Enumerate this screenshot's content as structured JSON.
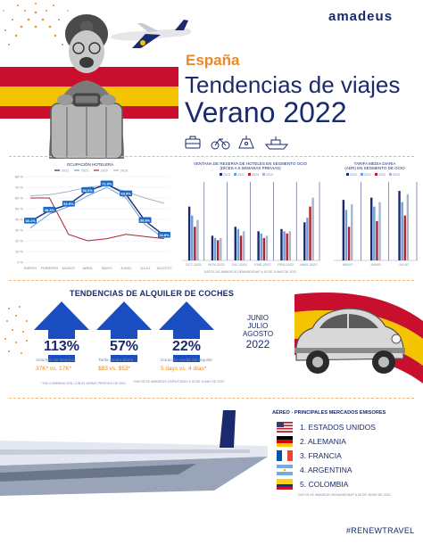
{
  "brand": {
    "logo_text": "amadeus"
  },
  "header": {
    "country": "España",
    "title_line1": "Tendencias de viajes",
    "title_line2": "Verano 2022",
    "icons": [
      "suitcase-icon",
      "bicycle-icon",
      "picnic-icon",
      "ship-icon"
    ]
  },
  "colors": {
    "navy": "#1a2a6c",
    "orange": "#e8892a",
    "flag_red": "#c8102e",
    "flag_yellow": "#f5c400",
    "series_2022": "#1a2a6c",
    "series_2021": "#6a9fd8",
    "series_2020": "#b02030",
    "series_2019": "#a8b4c8"
  },
  "chart_data": [
    {
      "type": "line",
      "title": "OCUPACIÓN HOTELERA",
      "categories": [
        "ENERO",
        "FEBRERO",
        "MARZO",
        "ABRIL",
        "MAYO",
        "JUNIO",
        "JULIO",
        "AGOSTO"
      ],
      "ylim": [
        0,
        80
      ],
      "yticks": [
        "0 %",
        "10 %",
        "20 %",
        "30 %",
        "40 %",
        "50 %",
        "60 %",
        "70 %",
        "80 %"
      ],
      "legend": [
        "2022",
        "2021",
        "2020",
        "2019"
      ],
      "series": [
        {
          "name": "2022",
          "values": [
            38.1,
            48.3,
            53.9,
            66.6,
            72.8,
            63.5,
            38.6,
            24.8
          ]
        },
        {
          "name": "2021",
          "values": [
            32,
            45,
            52,
            62,
            70,
            60,
            35,
            22
          ]
        },
        {
          "name": "2020",
          "values": [
            60,
            60,
            26,
            20,
            22,
            26,
            24,
            22
          ]
        },
        {
          "name": "2019",
          "values": [
            62,
            63,
            66,
            70,
            72,
            66,
            60,
            55
          ]
        }
      ],
      "labels": [
        "38.1%",
        "48.3%",
        "53.9%",
        "66.6%",
        "72.8%",
        "63.5%",
        "38.6%",
        "24.8%"
      ]
    },
    {
      "type": "bar",
      "title": "VENTANA DE RESERVA DE HOTELES EN SEGMENTO OCIO",
      "subtitle": "(DÍCES A 5 SEMANAS PREVIAS)",
      "categories": [
        "OCT-2021",
        "NOV-2021",
        "DIC-2021",
        "ENE-2022",
        "FEB-2022",
        "MAR-2022"
      ],
      "legend": [
        "2022",
        "2021",
        "2020",
        "2019"
      ],
      "ylim": [
        0,
        70
      ],
      "series": [
        {
          "name": "2022",
          "values": [
            48,
            22,
            30,
            26,
            28,
            34
          ]
        },
        {
          "name": "2021",
          "values": [
            40,
            20,
            28,
            24,
            26,
            38
          ]
        },
        {
          "name": "2020",
          "values": [
            30,
            18,
            22,
            20,
            24,
            48
          ]
        },
        {
          "name": "2019",
          "values": [
            36,
            20,
            26,
            22,
            26,
            56
          ]
        }
      ],
      "footnote": "DATOS DE AMADEUS DEMANDSNAP A 30 DE JUNIO DE 2022"
    },
    {
      "type": "bar",
      "title": "TARIFA MEDIA DIARIA",
      "subtitle": "(ADR) EN SEGMENTO DE OCIO",
      "categories": [
        "MAYO",
        "JUNIO",
        "JULIO"
      ],
      "legend": [
        "2022",
        "2021",
        "2020",
        "2019"
      ],
      "ylim": [
        0,
        140
      ],
      "series": [
        {
          "name": "2022",
          "values": [
            108,
            112,
            124
          ]
        },
        {
          "name": "2021",
          "values": [
            90,
            96,
            104
          ]
        },
        {
          "name": "2020",
          "values": [
            60,
            70,
            80
          ]
        },
        {
          "name": "2019",
          "values": [
            100,
            104,
            118
          ]
        }
      ]
    }
  ],
  "car_rental": {
    "title": "TENDENCIAS DE ALQUILER DE COCHES",
    "period": [
      "JUNIO",
      "JULIO",
      "AGOSTO",
      "2022"
    ],
    "stats": [
      {
        "pct": "113%",
        "label": "Volumen de Reserva",
        "detail": "37K* vs. 17K*"
      },
      {
        "pct": "57%",
        "label": "Tarifa media diaria",
        "detail": "$83 vs. $53*"
      },
      {
        "pct": "22%",
        "label": "Duración media del alquiler",
        "detail": "5 days vs. 4 días*"
      }
    ],
    "footnote_left": "* EN COMPARACIÓN CON EL MISMO PERIODO DE 2021",
    "footnote_right": "DATOS DE AMADEUS CARS/TODAY A 30 DE JUNIO DE 2022"
  },
  "air": {
    "title": "AÉREO - PRINCIPALES MERCADOS EMISORES",
    "markets": [
      {
        "rank": "1. ESTADOS UNIDOS",
        "flag": "usa-flag"
      },
      {
        "rank": "2. ALEMANIA",
        "flag": "germany-flag"
      },
      {
        "rank": "3. FRANCIA",
        "flag": "france-flag"
      },
      {
        "rank": "4. ARGENTINA",
        "flag": "argentina-flag"
      },
      {
        "rank": "5. COLOMBIA",
        "flag": "colombia-flag"
      }
    ],
    "footnote": "DATOS DE AMADEUS DEMANDSNAP A 30 DE JUNIO DE 2022"
  },
  "hashtag": "#RENEWTRAVEL"
}
